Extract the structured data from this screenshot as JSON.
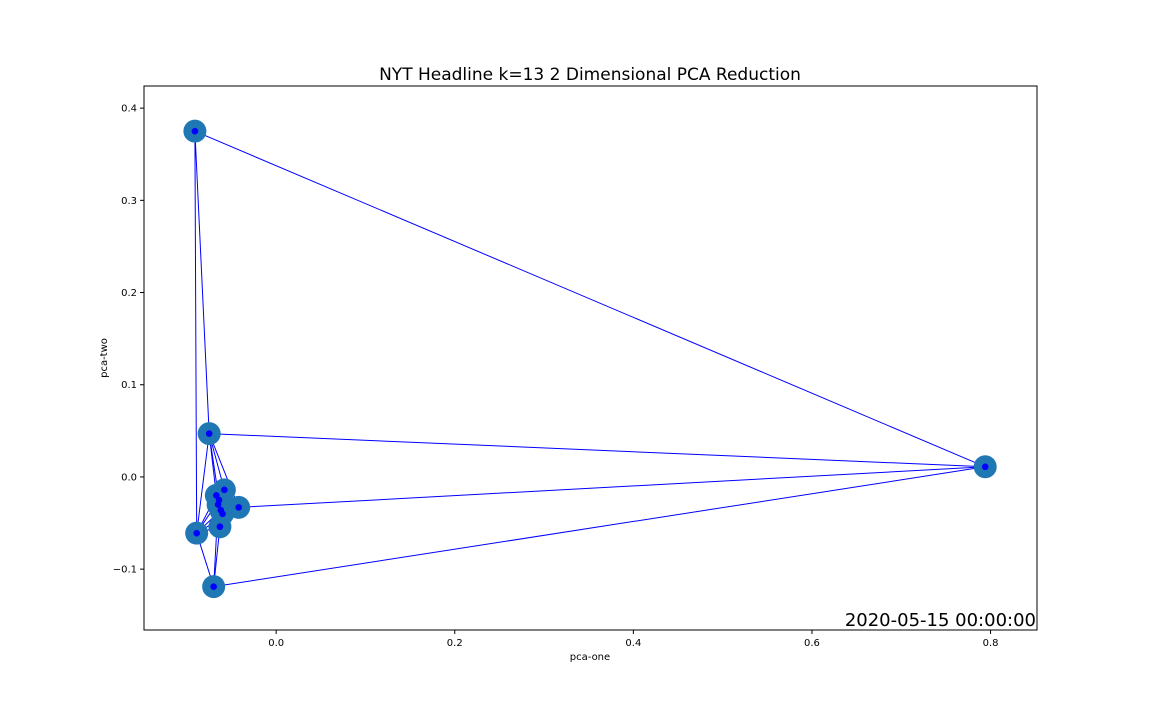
{
  "chart_data": {
    "type": "scatter",
    "title": "NYT Headline k=13 2 Dimensional PCA Reduction",
    "xlabel": "pca-one",
    "ylabel": "pca-two",
    "xlim": [
      -0.148,
      0.852
    ],
    "ylim": [
      -0.166,
      0.424
    ],
    "xticks": [
      0.0,
      0.2,
      0.4,
      0.6,
      0.8
    ],
    "xtick_labels": [
      "0.0",
      "0.2",
      "0.4",
      "0.6",
      "0.8"
    ],
    "yticks": [
      -0.1,
      0.0,
      0.1,
      0.2,
      0.3,
      0.4
    ],
    "ytick_labels": [
      "−0.1",
      "0.0",
      "0.1",
      "0.2",
      "0.3",
      "0.4"
    ],
    "grid": false,
    "timestamp": "2020-05-15 00:00:00",
    "colors": {
      "cluster_marker": "#1f77b4",
      "point_marker": "#0000ff",
      "edge": "#0000ff"
    },
    "series": [
      {
        "points": [
          {
            "x": -0.091,
            "y": 0.375
          },
          {
            "x": 0.794,
            "y": 0.011
          },
          {
            "x": -0.075,
            "y": 0.047
          },
          {
            "x": -0.07,
            "y": -0.119
          },
          {
            "x": -0.089,
            "y": -0.061
          },
          {
            "x": -0.067,
            "y": -0.02
          },
          {
            "x": -0.058,
            "y": -0.014
          },
          {
            "x": -0.042,
            "y": -0.033
          },
          {
            "x": -0.063,
            "y": -0.054
          },
          {
            "x": -0.065,
            "y": -0.03
          },
          {
            "x": -0.062,
            "y": -0.036
          },
          {
            "x": -0.06,
            "y": -0.04
          },
          {
            "x": -0.064,
            "y": -0.025
          }
        ]
      }
    ],
    "edges": [
      [
        0,
        1
      ],
      [
        0,
        2
      ],
      [
        0,
        4
      ],
      [
        1,
        2
      ],
      [
        1,
        3
      ],
      [
        1,
        7
      ],
      [
        2,
        4
      ],
      [
        2,
        6
      ],
      [
        2,
        7
      ],
      [
        2,
        5
      ],
      [
        3,
        4
      ],
      [
        3,
        8
      ],
      [
        3,
        9
      ],
      [
        4,
        5
      ],
      [
        4,
        7
      ],
      [
        4,
        8
      ],
      [
        4,
        10
      ],
      [
        5,
        6
      ],
      [
        5,
        7
      ],
      [
        5,
        8
      ],
      [
        6,
        7
      ],
      [
        6,
        9
      ],
      [
        7,
        8
      ],
      [
        7,
        10
      ],
      [
        8,
        9
      ],
      [
        9,
        11
      ],
      [
        10,
        12
      ],
      [
        11,
        12
      ],
      [
        4,
        12
      ],
      [
        2,
        12
      ]
    ]
  }
}
